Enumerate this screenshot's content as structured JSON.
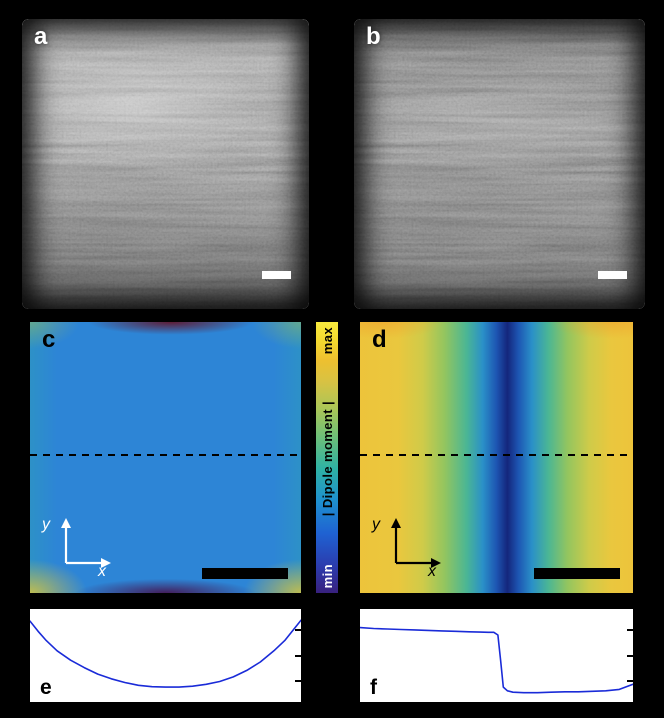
{
  "panels": {
    "a": {
      "label": "a"
    },
    "b": {
      "label": "b"
    },
    "c": {
      "label": "c",
      "x_axis_label": "x",
      "y_axis_label": "y"
    },
    "d": {
      "label": "d",
      "x_axis_label": "x",
      "y_axis_label": "y"
    },
    "e": {
      "label": "e"
    },
    "f": {
      "label": "f"
    }
  },
  "colorbar": {
    "title": "| Dipole moment |",
    "top_label": "max",
    "bottom_label": "min",
    "gradient_bottom_to_top": [
      "#38217e",
      "#2b3cae",
      "#1f62d2",
      "#1e90cf",
      "#2fb2a4",
      "#6fc077",
      "#abc657",
      "#d8c243",
      "#eec02f",
      "#f4d92f",
      "#f8ea3e"
    ]
  },
  "colors": {
    "background": "#000000",
    "panel_c_base_blue": "#2d85d6",
    "panel_d_center_stripe": "#14267c",
    "panel_d_edge_yellow": "#edc43b",
    "curve_blue": "#1a2bd8",
    "micrograph_scalebar": "#ffffff",
    "heatmap_scalebar": "#000000",
    "micrograph_label": "#ffffff",
    "heatmap_label": "#000000"
  },
  "chart_data": [
    {
      "type": "line",
      "panel": "e",
      "title": "",
      "xlabel": "",
      "ylabel": "",
      "x_range": [
        0,
        1
      ],
      "y_range": [
        0,
        1
      ],
      "grid": false,
      "line_color": "#1a2bd8",
      "series": [
        {
          "name": "dipole-moment-profile-along-dashed-line-c",
          "x": [
            0,
            0.03,
            0.06,
            0.1,
            0.15,
            0.2,
            0.25,
            0.3,
            0.35,
            0.4,
            0.45,
            0.5,
            0.55,
            0.6,
            0.65,
            0.7,
            0.75,
            0.8,
            0.85,
            0.9,
            0.94,
            0.97,
            1.0
          ],
          "values": [
            0.87,
            0.76,
            0.66,
            0.55,
            0.45,
            0.37,
            0.3,
            0.25,
            0.21,
            0.18,
            0.165,
            0.16,
            0.16,
            0.17,
            0.19,
            0.22,
            0.27,
            0.34,
            0.43,
            0.55,
            0.66,
            0.77,
            0.88
          ]
        }
      ]
    },
    {
      "type": "line",
      "panel": "f",
      "title": "",
      "xlabel": "",
      "ylabel": "",
      "x_range": [
        0,
        1
      ],
      "y_range": [
        0,
        1
      ],
      "grid": false,
      "line_color": "#1a2bd8",
      "series": [
        {
          "name": "dipole-moment-profile-along-dashed-line-d",
          "x": [
            0,
            0.05,
            0.1,
            0.15,
            0.2,
            0.25,
            0.3,
            0.35,
            0.4,
            0.44,
            0.47,
            0.49,
            0.505,
            0.515,
            0.525,
            0.54,
            0.56,
            0.6,
            0.65,
            0.7,
            0.75,
            0.8,
            0.85,
            0.9,
            0.95,
            1.0
          ],
          "values": [
            0.8,
            0.79,
            0.785,
            0.78,
            0.775,
            0.77,
            0.765,
            0.76,
            0.755,
            0.752,
            0.75,
            0.75,
            0.72,
            0.45,
            0.16,
            0.12,
            0.105,
            0.1,
            0.1,
            0.105,
            0.11,
            0.11,
            0.115,
            0.12,
            0.135,
            0.19
          ]
        }
      ]
    }
  ]
}
